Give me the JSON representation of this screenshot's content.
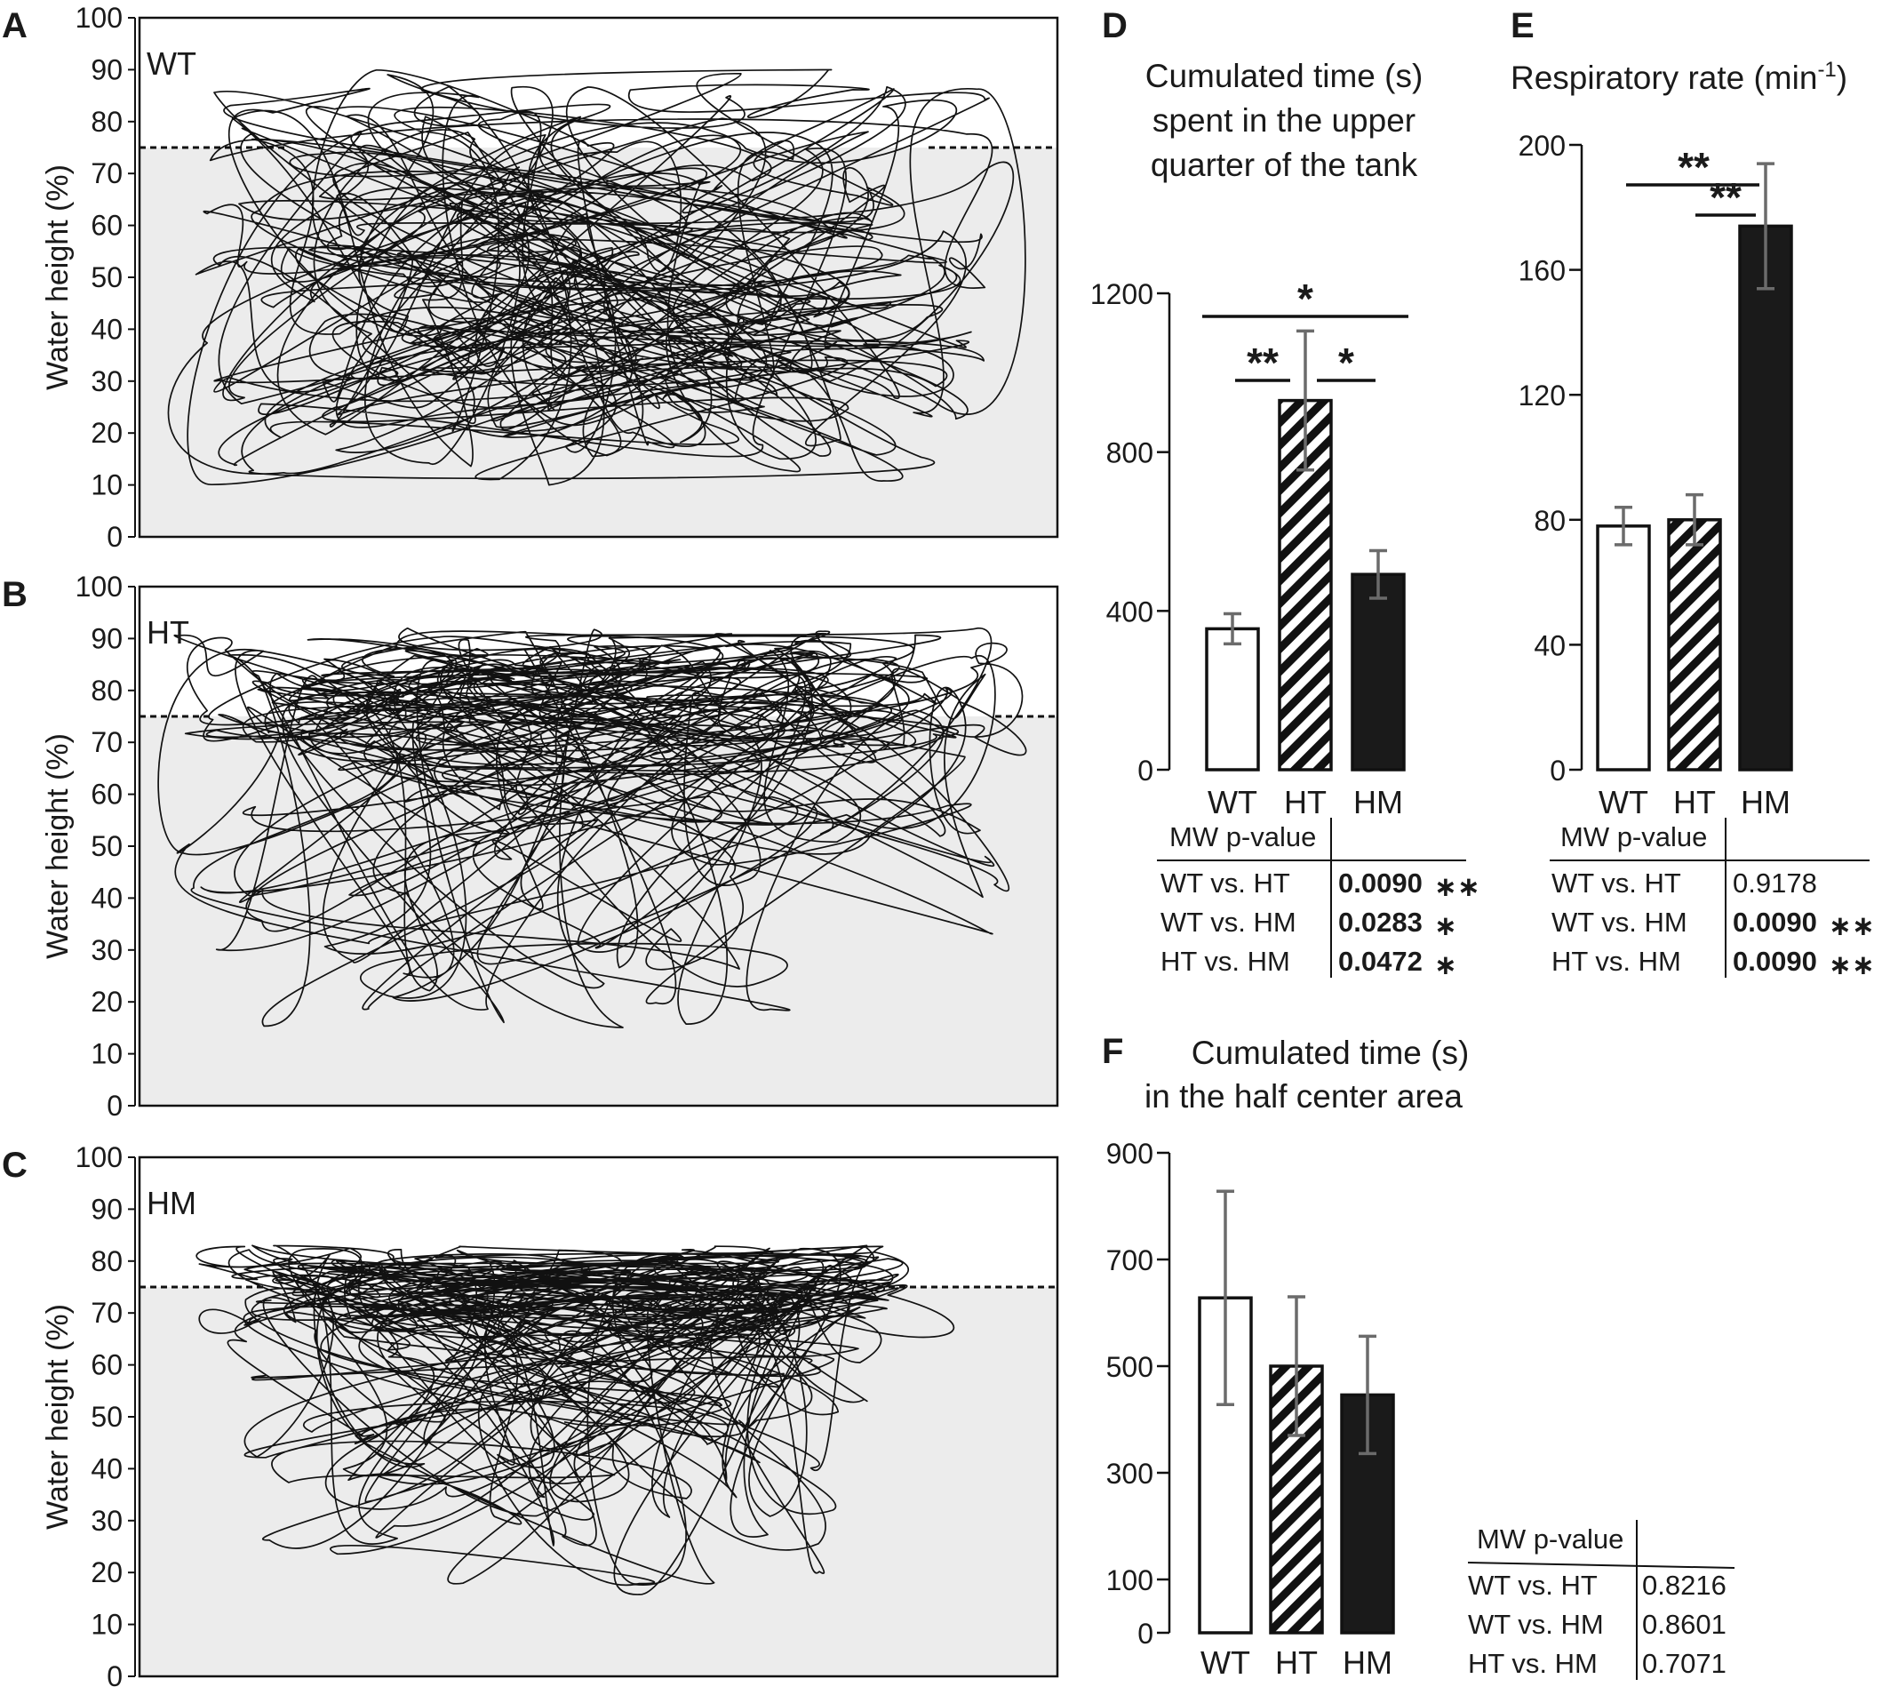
{
  "panels": [
    {
      "id": "A",
      "group": "WT",
      "ylabel": "Water height (%)",
      "yticks": [
        "0",
        "10",
        "20",
        "30",
        "40",
        "50",
        "60",
        "70",
        "80",
        "90",
        "100"
      ],
      "threshold": 75,
      "trajectory_band": [
        10,
        90
      ]
    },
    {
      "id": "B",
      "group": "HT",
      "ylabel": "Water height (%)",
      "yticks": [
        "0",
        "10",
        "20",
        "30",
        "40",
        "50",
        "60",
        "70",
        "80",
        "90",
        "100"
      ],
      "threshold": 75,
      "trajectory_band": [
        15,
        92
      ]
    },
    {
      "id": "C",
      "group": "HM",
      "ylabel": "Water height (%)",
      "yticks": [
        "0",
        "10",
        "20",
        "30",
        "40",
        "50",
        "60",
        "70",
        "80",
        "90",
        "100"
      ],
      "threshold": 75,
      "trajectory_band": [
        15,
        83
      ]
    }
  ],
  "colors": {
    "water": "#ececec",
    "bar_stroke": "#111111",
    "hm_fill": "#1a1a1a",
    "error": "#6b6b6b"
  },
  "chart_data": [
    {
      "id": "D",
      "type": "bar",
      "title": [
        "Cumulated time (s)",
        "spent in the upper",
        "quarter of the tank"
      ],
      "categories": [
        "WT",
        "HT",
        "HM"
      ],
      "fills": [
        "white",
        "hatched",
        "black"
      ],
      "values": [
        355,
        930,
        492
      ],
      "errors": [
        38,
        175,
        60
      ],
      "ylim": [
        0,
        1200
      ],
      "yticks": [
        "0",
        "400",
        "800",
        "1200"
      ],
      "significance": [
        {
          "from": 0,
          "to": 2,
          "label": "*"
        },
        {
          "from": 0,
          "to": 1,
          "label": "**"
        },
        {
          "from": 1,
          "to": 2,
          "label": "*"
        }
      ],
      "table": {
        "header": "MW p-value",
        "rows": [
          {
            "label": "WT vs. HT",
            "value": "0.0090",
            "stars": "∗∗",
            "bold": true
          },
          {
            "label": "WT vs. HM",
            "value": "0.0283",
            "stars": "∗",
            "bold": true
          },
          {
            "label": "HT vs. HM",
            "value": "0.0472",
            "stars": "∗",
            "bold": true
          }
        ]
      }
    },
    {
      "id": "E",
      "type": "bar",
      "title": [
        "Respiratory rate (min",
        "-1",
        ")"
      ],
      "categories": [
        "WT",
        "HT",
        "HM"
      ],
      "fills": [
        "white",
        "hatched",
        "black"
      ],
      "values": [
        78,
        80,
        174
      ],
      "errors": [
        6,
        8,
        20
      ],
      "ylim": [
        0,
        200
      ],
      "yticks": [
        "0",
        "40",
        "80",
        "120",
        "160",
        "200"
      ],
      "significance": [
        {
          "from": 0,
          "to": 2,
          "label": "**"
        },
        {
          "from": 1,
          "to": 2,
          "label": "**"
        }
      ],
      "table": {
        "header": "MW p-value",
        "rows": [
          {
            "label": "WT vs. HT",
            "value": "0.9178",
            "stars": "",
            "bold": false
          },
          {
            "label": "WT vs. HM",
            "value": "0.0090",
            "stars": "∗∗",
            "bold": true
          },
          {
            "label": "HT vs. HM",
            "value": "0.0090",
            "stars": "∗∗",
            "bold": true
          }
        ]
      }
    },
    {
      "id": "F",
      "type": "bar",
      "title": [
        "Cumulated time (s)",
        "in the half center area"
      ],
      "categories": [
        "WT",
        "HT",
        "HM"
      ],
      "fills": [
        "white",
        "hatched",
        "black"
      ],
      "values": [
        628,
        500,
        446
      ],
      "errors": [
        200,
        130,
        110
      ],
      "ylim": [
        0,
        900
      ],
      "yticks": [
        "0",
        "100",
        "300",
        "500",
        "700",
        "900"
      ],
      "significance": [],
      "table": {
        "header": "MW p-value",
        "rows": [
          {
            "label": "WT vs. HT",
            "value": "0.8216",
            "stars": "",
            "bold": false
          },
          {
            "label": "WT vs. HM",
            "value": "0.8601",
            "stars": "",
            "bold": false
          },
          {
            "label": "HT vs. HM",
            "value": "0.7071",
            "stars": "",
            "bold": false
          }
        ]
      }
    }
  ]
}
